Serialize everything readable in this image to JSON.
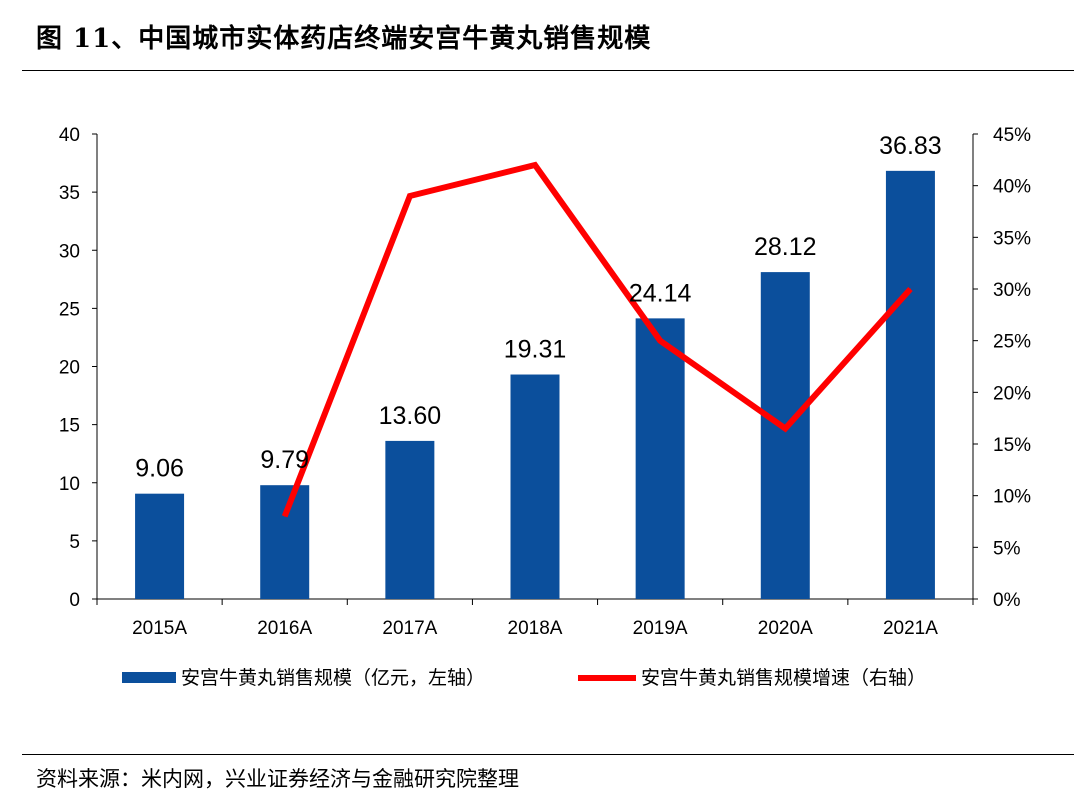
{
  "header": {
    "title": "图 11、中国城市实体药店终端安宫牛黄丸销售规模"
  },
  "footer": {
    "source": "资料来源：米内网，兴业证券经济与金融研究院整理"
  },
  "chart_data": {
    "type": "bar",
    "categories": [
      "2015A",
      "2016A",
      "2017A",
      "2018A",
      "2019A",
      "2020A",
      "2021A"
    ],
    "series": [
      {
        "name": "安宫牛黄丸销售规模（亿元，左轴）",
        "type": "bar",
        "axis": "left",
        "color": "#0B4F9C",
        "values": [
          9.06,
          9.79,
          13.6,
          19.31,
          24.14,
          28.12,
          36.83
        ],
        "labels": [
          "9.06",
          "9.79",
          "13.60",
          "19.31",
          "24.14",
          "28.12",
          "36.83"
        ]
      },
      {
        "name": "安宫牛黄丸销售规模增速（右轴）",
        "type": "line",
        "axis": "right",
        "color": "#FF0000",
        "values": [
          null,
          0.08,
          0.39,
          0.42,
          0.25,
          0.165,
          0.3
        ]
      }
    ],
    "yleft": {
      "min": 0,
      "max": 40,
      "ticks": [
        0,
        5,
        10,
        15,
        20,
        25,
        30,
        35,
        40
      ]
    },
    "yright": {
      "min": 0,
      "max": 0.45,
      "ticks": [
        0,
        0.05,
        0.1,
        0.15,
        0.2,
        0.25,
        0.3,
        0.35,
        0.4,
        0.45
      ],
      "tick_labels": [
        "0%",
        "5%",
        "10%",
        "15%",
        "20%",
        "25%",
        "30%",
        "35%",
        "40%",
        "45%"
      ]
    },
    "legend": "bottom",
    "grid": false
  }
}
